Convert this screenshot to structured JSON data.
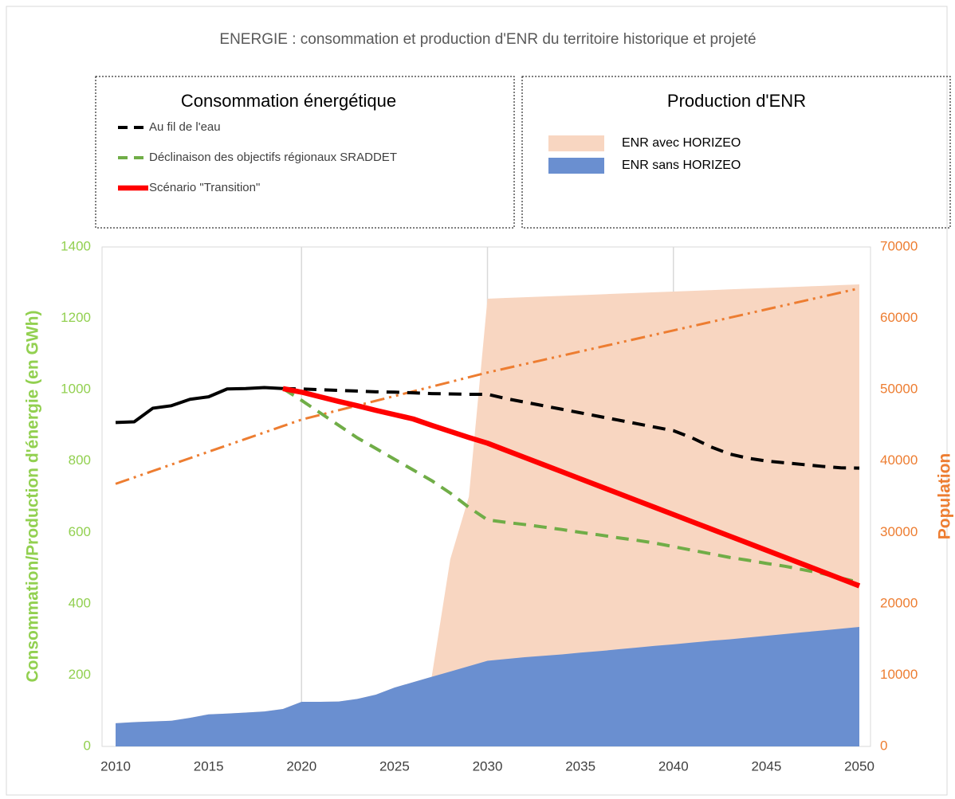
{
  "chart_data": {
    "type": "line",
    "title": "ENERGIE : consommation et production d'ENR du territoire historique et projeté",
    "ylabel": "Consommation/Production d'énergie (en GWh)",
    "y2label": "Population",
    "legends": [
      {
        "title": "Consommation énergétique"
      },
      {
        "title": "Production d'ENR"
      }
    ],
    "x": [
      2010,
      2011,
      2012,
      2013,
      2014,
      2015,
      2016,
      2017,
      2018,
      2019,
      2020,
      2021,
      2022,
      2023,
      2024,
      2025,
      2026,
      2027,
      2028,
      2029,
      2030,
      2031,
      2032,
      2033,
      2034,
      2035,
      2036,
      2037,
      2038,
      2039,
      2040,
      2041,
      2042,
      2043,
      2044,
      2045,
      2046,
      2047,
      2048,
      2049,
      2050
    ],
    "xlim": [
      2009.27,
      2050.6
    ],
    "xticks": [
      2010,
      2015,
      2020,
      2025,
      2030,
      2035,
      2040,
      2045,
      2050
    ],
    "xgrid": [
      2020,
      2030,
      2040
    ],
    "ylim": [
      0,
      1400
    ],
    "yticks": [
      0,
      200,
      400,
      600,
      800,
      1000,
      1200,
      1400
    ],
    "y2lim": [
      0,
      70000
    ],
    "y2ticks": [
      0,
      10000,
      20000,
      30000,
      40000,
      50000,
      60000,
      70000
    ],
    "ytick_color": "#92d050",
    "y2tick_color": "#ed7d31",
    "series": [
      {
        "kind": "area",
        "legend": 1,
        "name": "ENR avec HORIZEO",
        "color": "#f8d6c1",
        "values": [
          65,
          68,
          70,
          72,
          80,
          90,
          92,
          95,
          98,
          105,
          125,
          125,
          126,
          133,
          145,
          165,
          180,
          195,
          525,
          700,
          1255,
          1257,
          1259,
          1261,
          1263,
          1265,
          1267,
          1269,
          1271,
          1273,
          1275,
          1277,
          1279,
          1281,
          1283,
          1285,
          1287,
          1289,
          1291,
          1293,
          1295
        ]
      },
      {
        "kind": "area",
        "legend": 1,
        "name": "ENR sans HORIZEO",
        "color": "#6a8fd0",
        "values": [
          65,
          68,
          70,
          72,
          80,
          90,
          92,
          95,
          98,
          105,
          125,
          125,
          126,
          133,
          145,
          165,
          180,
          195,
          210,
          225,
          240,
          245,
          250,
          254,
          258,
          263,
          267,
          272,
          277,
          282,
          286,
          291,
          296,
          300,
          305,
          310,
          315,
          320,
          325,
          330,
          335
        ]
      },
      {
        "kind": "line",
        "style": "dash-dot",
        "color": "#ed7d31",
        "axis": "y2",
        "values": [
          36800,
          37700,
          38600,
          39500,
          40400,
          41300,
          42200,
          43100,
          44000,
          44900,
          45800,
          46460,
          47120,
          47780,
          48440,
          49100,
          49760,
          50420,
          51080,
          51740,
          52400,
          52990,
          53580,
          54170,
          54760,
          55350,
          55940,
          56530,
          57120,
          57710,
          58300,
          58890,
          59480,
          60070,
          60660,
          61250,
          61840,
          62430,
          63020,
          63610,
          64200
        ]
      },
      {
        "kind": "line",
        "style": "solid",
        "color": "#000000",
        "values": [
          908,
          910,
          948,
          955,
          973,
          980,
          1002,
          1003,
          1006,
          1003,
          null,
          null,
          null,
          null,
          null,
          null,
          null,
          null,
          null,
          null,
          null,
          null,
          null,
          null,
          null,
          null,
          null,
          null,
          null,
          null,
          null,
          null,
          null,
          null,
          null,
          null,
          null,
          null,
          null,
          null,
          null
        ]
      },
      {
        "kind": "line",
        "legend": 0,
        "style": "dashed",
        "name": "Au fil de l'eau",
        "color": "#000000",
        "values": [
          null,
          null,
          null,
          null,
          null,
          null,
          null,
          null,
          null,
          1003,
          1002,
          1000,
          998,
          996,
          994,
          993,
          991,
          989,
          988,
          987,
          987,
          975,
          965,
          955,
          945,
          935,
          925,
          915,
          905,
          895,
          885,
          865,
          840,
          820,
          808,
          800,
          795,
          790,
          785,
          781,
          780
        ]
      },
      {
        "kind": "line",
        "legend": 0,
        "style": "dashed",
        "name": "Déclinaison des objectifs régionaux SRADDET",
        "color": "#70ad47",
        "values": [
          null,
          null,
          null,
          null,
          null,
          null,
          null,
          null,
          null,
          1003,
          970,
          935,
          900,
          865,
          835,
          805,
          775,
          745,
          710,
          670,
          635,
          628,
          622,
          615,
          608,
          600,
          593,
          585,
          578,
          570,
          560,
          550,
          540,
          530,
          522,
          513,
          505,
          495,
          485,
          472,
          460
        ]
      },
      {
        "kind": "line",
        "legend": 0,
        "style": "thick",
        "name": "Scénario \"Transition\"",
        "color": "#ff0000",
        "values": [
          null,
          null,
          null,
          null,
          null,
          null,
          null,
          null,
          null,
          1003,
          993,
          980,
          967,
          955,
          942,
          930,
          918,
          900,
          883,
          866,
          850,
          830,
          810,
          790,
          770,
          750,
          730,
          710,
          690,
          670,
          650,
          630,
          610,
          590,
          570,
          550,
          530,
          510,
          490,
          470,
          450
        ]
      }
    ]
  }
}
